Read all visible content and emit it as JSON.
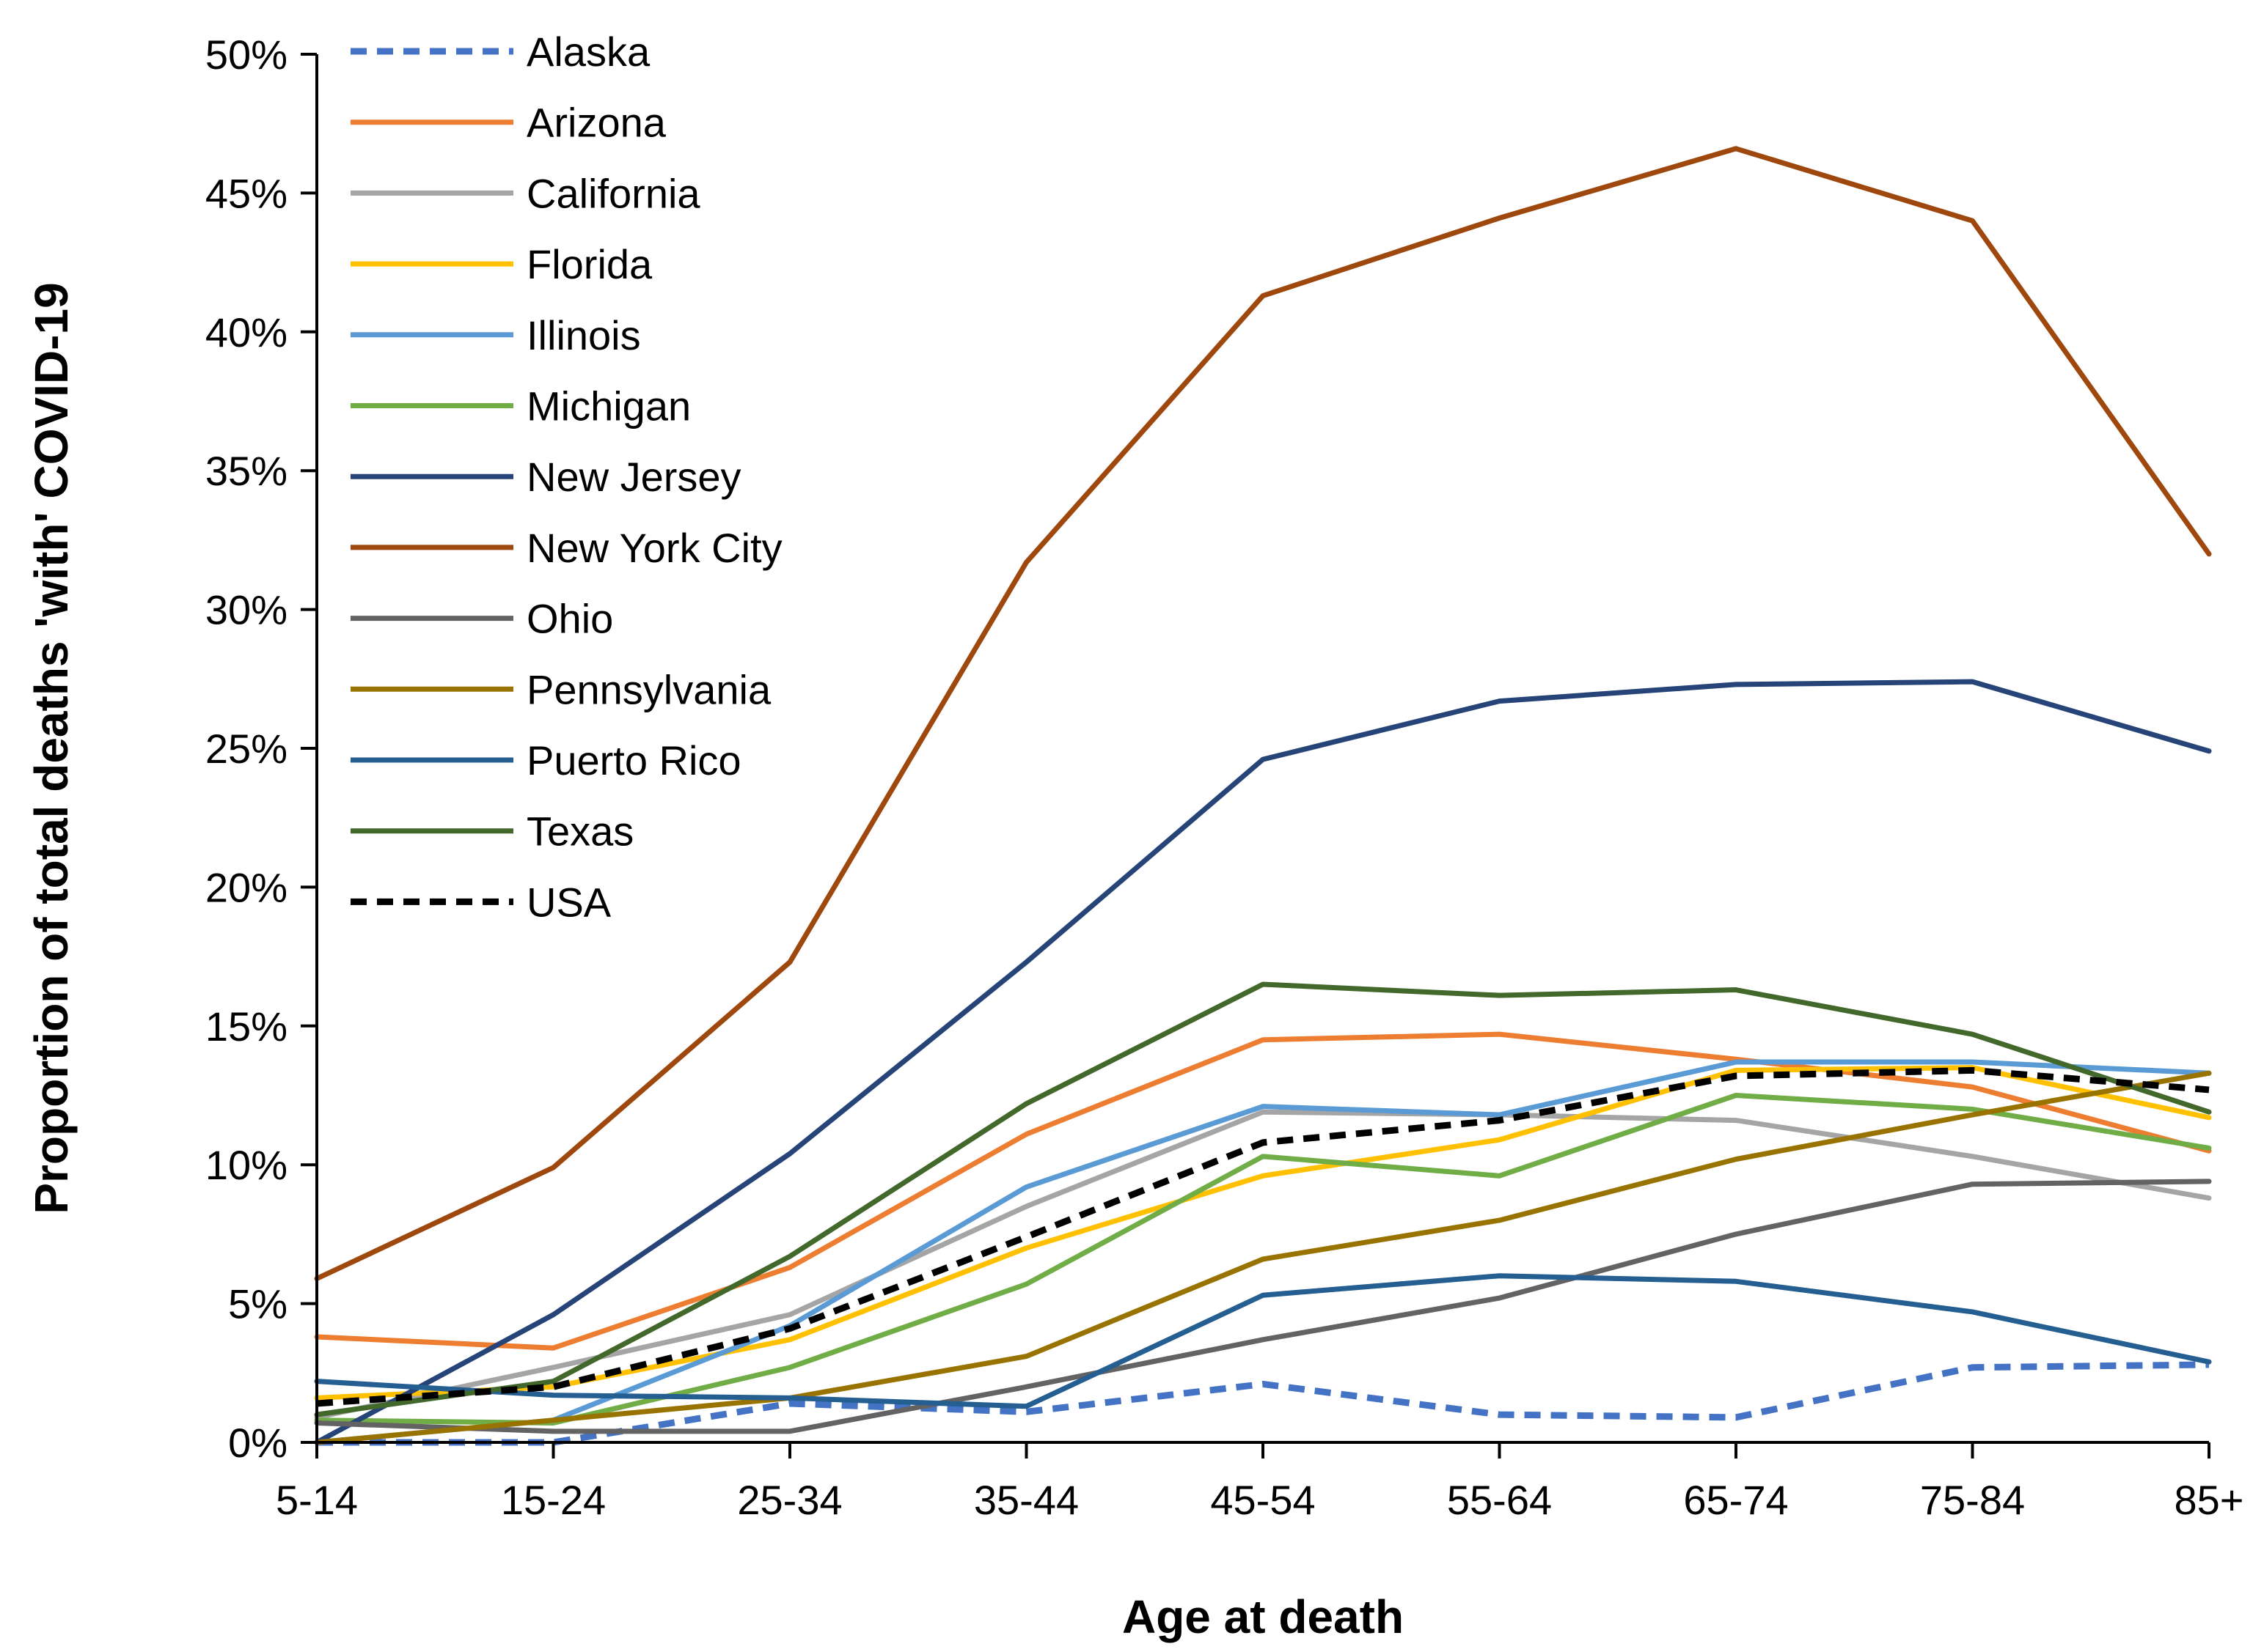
{
  "chart_data": {
    "type": "line",
    "title": "",
    "xlabel": "Age at death",
    "ylabel": "Proportion of total deaths 'with' COVID-19",
    "categories": [
      "5-14",
      "15-24",
      "25-34",
      "35-44",
      "45-54",
      "55-64",
      "65-74",
      "75-84",
      "85+"
    ],
    "ylim": [
      0,
      50
    ],
    "yticks": [
      "0%",
      "5%",
      "10%",
      "15%",
      "20%",
      "25%",
      "30%",
      "35%",
      "40%",
      "45%",
      "50%"
    ],
    "ytick_values": [
      0,
      5,
      10,
      15,
      20,
      25,
      30,
      35,
      40,
      45,
      50
    ],
    "grid": false,
    "legend_position": "top-left",
    "series": [
      {
        "name": "Alaska",
        "color": "#4472C4",
        "dashed": true,
        "values": [
          0.0,
          0.0,
          1.4,
          1.1,
          2.1,
          1.0,
          0.9,
          2.7,
          2.8
        ]
      },
      {
        "name": "Arizona",
        "color": "#ED7D31",
        "dashed": false,
        "values": [
          3.8,
          3.4,
          6.3,
          11.1,
          14.5,
          14.7,
          13.8,
          12.8,
          10.5
        ]
      },
      {
        "name": "California",
        "color": "#A5A5A5",
        "dashed": false,
        "values": [
          0.9,
          2.7,
          4.6,
          8.5,
          11.9,
          11.8,
          11.6,
          10.3,
          8.8
        ]
      },
      {
        "name": "Florida",
        "color": "#FFC000",
        "dashed": false,
        "values": [
          1.6,
          2.0,
          3.7,
          7.0,
          9.6,
          10.9,
          13.4,
          13.5,
          11.7
        ]
      },
      {
        "name": "Illinois",
        "color": "#5B9BD5",
        "dashed": false,
        "values": [
          0.0,
          0.8,
          4.2,
          9.2,
          12.1,
          11.8,
          13.7,
          13.7,
          13.3
        ]
      },
      {
        "name": "Michigan",
        "color": "#70AD47",
        "dashed": false,
        "values": [
          0.8,
          0.7,
          2.7,
          5.7,
          10.3,
          9.6,
          12.5,
          12.0,
          10.6
        ]
      },
      {
        "name": "New Jersey",
        "color": "#264478",
        "dashed": false,
        "values": [
          0.0,
          4.6,
          10.4,
          17.3,
          24.6,
          26.7,
          27.3,
          27.4,
          24.9
        ]
      },
      {
        "name": "New York City",
        "color": "#9E480E",
        "dashed": false,
        "values": [
          5.9,
          9.9,
          17.3,
          31.7,
          41.3,
          44.1,
          46.6,
          44.0,
          32.0
        ]
      },
      {
        "name": "Ohio",
        "color": "#636363",
        "dashed": false,
        "values": [
          0.7,
          0.4,
          0.4,
          2.0,
          3.7,
          5.2,
          7.5,
          9.3,
          9.4
        ]
      },
      {
        "name": "Pennsylvania",
        "color": "#997300",
        "dashed": false,
        "values": [
          0.0,
          0.8,
          1.6,
          3.1,
          6.6,
          8.0,
          10.2,
          11.8,
          13.3
        ]
      },
      {
        "name": "Puerto Rico",
        "color": "#255E91",
        "dashed": false,
        "values": [
          2.2,
          1.7,
          1.6,
          1.3,
          5.3,
          6.0,
          5.8,
          4.7,
          2.9
        ]
      },
      {
        "name": "Texas",
        "color": "#43682B",
        "dashed": false,
        "values": [
          1.0,
          2.2,
          6.7,
          12.2,
          16.5,
          16.1,
          16.3,
          14.7,
          11.9
        ]
      },
      {
        "name": "USA",
        "color": "#000000",
        "dashed": true,
        "values": [
          1.4,
          2.0,
          4.1,
          7.4,
          10.8,
          11.6,
          13.2,
          13.4,
          12.7
        ]
      }
    ]
  }
}
